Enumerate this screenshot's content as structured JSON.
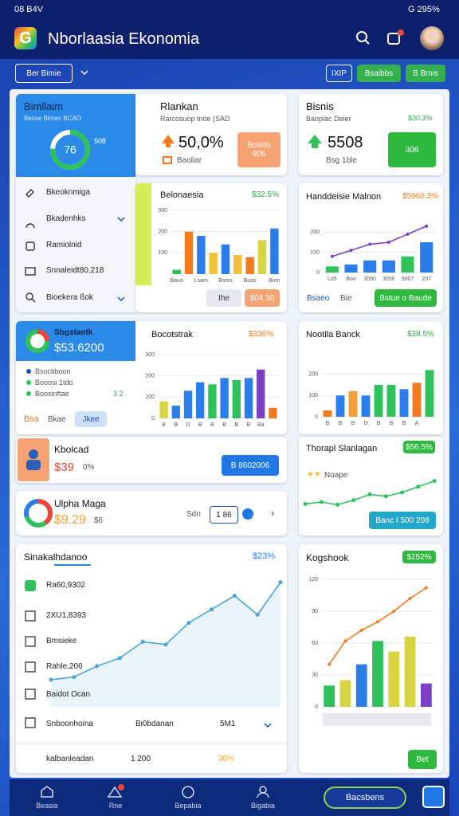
{
  "status_bar": {
    "time": "08 B4V",
    "battery": "G 295%"
  },
  "header": {
    "logo": "G",
    "title": "Nborlaasia Ekonomia"
  },
  "toolbar": {
    "filter": "Ber Bimie",
    "buttons": [
      "IXIP",
      "Bsaibbs",
      "B Bmis"
    ]
  },
  "summary": {
    "title": "Bimllaim",
    "subtitle": "Bexxe Btmec BCAO",
    "donut_value": 76,
    "donut_max": 100,
    "color": "#2fc25b",
    "side_value": "508"
  },
  "kpi_orange": {
    "title": "Rlankan",
    "subtitle": "Rarcosuop tnoe (SAD",
    "value": "50,0%",
    "note": "Baoliar",
    "button": [
      "Bciielo",
      "906"
    ]
  },
  "kpi_green": {
    "title": "Bisnis",
    "subtitle": "Baopiac Deier",
    "change": "$30.3%",
    "value": "5508",
    "note": "Bsg 1ble",
    "button": "306"
  },
  "menu": [
    "Bkeoknmiga",
    "Bkadenhks",
    "Ramiolnid",
    "Snnaleidt80,218",
    "Bioekera ßok"
  ],
  "charts": [
    {
      "title": "Belonaesia",
      "badge": "$32.5%",
      "type": "bar",
      "ylim": [
        0,
        300
      ],
      "yticks": [
        100,
        200,
        300
      ],
      "categories": [
        "Bauo",
        null,
        "Lsam",
        null,
        "Bsms",
        null,
        "Buos",
        null,
        "Bom"
      ],
      "values": [
        20,
        200,
        180,
        100,
        140,
        90,
        80,
        160,
        215
      ],
      "colors": [
        "#2fc25b",
        "#f47a20",
        "#2b7de9",
        "#f2c037",
        "#2b7de9",
        "#f2c037",
        "#f47a20",
        "#d8d545",
        "#2b7de9"
      ],
      "footer": [
        "Ihe",
        "$04 30"
      ]
    },
    {
      "title": "Handdeisie Malnon",
      "badge": "$5960.3%",
      "type": "combo",
      "ylim": [
        0,
        300
      ],
      "yticks": [
        0,
        100,
        200
      ],
      "categories": [
        "Lo5",
        "Boo",
        "3090",
        "3050",
        "5007",
        "207"
      ],
      "values": [
        30,
        40,
        60,
        60,
        80,
        150
      ],
      "colors": [
        "#2fc25b",
        "#2b7de9",
        "#2b7de9",
        "#2b7de9",
        "#2fc25b",
        "#2b7de9"
      ],
      "line": {
        "values": [
          80,
          110,
          140,
          150,
          190,
          230
        ],
        "color": "#7b3fc4"
      },
      "footer": [
        "Bsaeo",
        "Bie",
        "Bstue o Baude"
      ]
    },
    {
      "title": "Bocotstrak",
      "badge": "$336%",
      "type": "bar",
      "ylim": [
        0,
        300
      ],
      "yticks": [
        0,
        100,
        200,
        300
      ],
      "categories": [
        "B",
        "B",
        "D",
        "B",
        "B",
        "B",
        "B",
        "B",
        "Ba",
        null
      ],
      "values": [
        80,
        60,
        130,
        170,
        160,
        190,
        180,
        190,
        230,
        50
      ],
      "colors": [
        "#d8d545",
        "#2b7de9",
        "#2b7de9",
        "#2b7de9",
        "#2fc25b",
        "#2b7de9",
        "#2fc25b",
        "#2b7de9",
        "#7b3fc4",
        "#f47a20"
      ]
    },
    {
      "title": "Nootila Banck",
      "badge": "$38.5%",
      "type": "bar",
      "ylim": [
        0,
        300
      ],
      "yticks": [
        0,
        100,
        200
      ],
      "categories": [
        "B",
        "B",
        "B",
        "D",
        "B",
        "B",
        "B",
        "A",
        null
      ],
      "values": [
        30,
        100,
        120,
        100,
        150,
        150,
        130,
        160,
        220
      ],
      "colors": [
        "#f47a20",
        "#2b7de9",
        "#f2a037",
        "#2b7de9",
        "#2fc25b",
        "#2fc25b",
        "#2b7de9",
        "#f47a20",
        "#2fc25b"
      ]
    },
    {
      "title": "Thorapl Slanlagan",
      "badge": "$56.5%",
      "type": "line",
      "ylim": [
        0,
        100
      ],
      "values": [
        20,
        25,
        18,
        30,
        45,
        40,
        50,
        65,
        80
      ],
      "color": "#2fc25b",
      "stars_label": "Noape",
      "button": "Banc I 500 208"
    },
    {
      "title": "Sinakalhdanoo",
      "badge": "$23%",
      "type": "area",
      "ylim": [
        0,
        100
      ],
      "values": [
        20,
        22,
        30,
        36,
        48,
        46,
        62,
        72,
        82,
        68,
        92
      ],
      "color": "#4aa3df"
    },
    {
      "title": "Kogshook",
      "badge": "$252%",
      "type": "combo",
      "ylim": [
        0,
        120
      ],
      "yticks": [
        0,
        30,
        60,
        90,
        120
      ],
      "values": [
        20,
        25,
        40,
        62,
        52,
        66,
        22
      ],
      "colors": [
        "#2fc25b",
        "#d8d545",
        "#2b7de9",
        "#2fc25b",
        "#d8d545",
        "#d8d545",
        "#7b3fc4"
      ],
      "line": {
        "values": [
          40,
          62,
          72,
          80,
          90,
          102,
          112
        ],
        "color": "#f47a20"
      },
      "button": "Bet"
    }
  ],
  "stats_card": {
    "title": "Sbgstaotk",
    "value": "$53.6200",
    "legend": [
      "Bsoctiboon",
      "Booosi 1tdo",
      "Boosinftae"
    ],
    "legend_note": "3 2",
    "tags": [
      "Bsa",
      "Bkae",
      "Jkee"
    ]
  },
  "promo": {
    "title": "Kbolcad",
    "value": "$39",
    "note": "0%",
    "button": "B 8602006"
  },
  "mega": {
    "title": "Ulpha Maga",
    "value": "$9.29",
    "note": "$6",
    "label": "Sdn",
    "count": "1 86",
    "donut": [
      40,
      30,
      30
    ],
    "donut_colors": [
      "#e8453c",
      "#2fc25b",
      "#2b7de9"
    ]
  },
  "activity": {
    "list": [
      "Ra60,9302",
      "2XU1,8393",
      "Bmsieke",
      "Rahle,206",
      "Baidot Ocan"
    ],
    "row": [
      "Snboonhoina",
      "Bi0bdanan",
      "5M1"
    ],
    "footer": [
      "kalbanleadan",
      "1 200",
      "30%"
    ]
  },
  "nav": {
    "items": [
      "Beasia",
      "Rne",
      "Bepabia",
      "Bigabia"
    ],
    "pill": "Bacsbens"
  }
}
